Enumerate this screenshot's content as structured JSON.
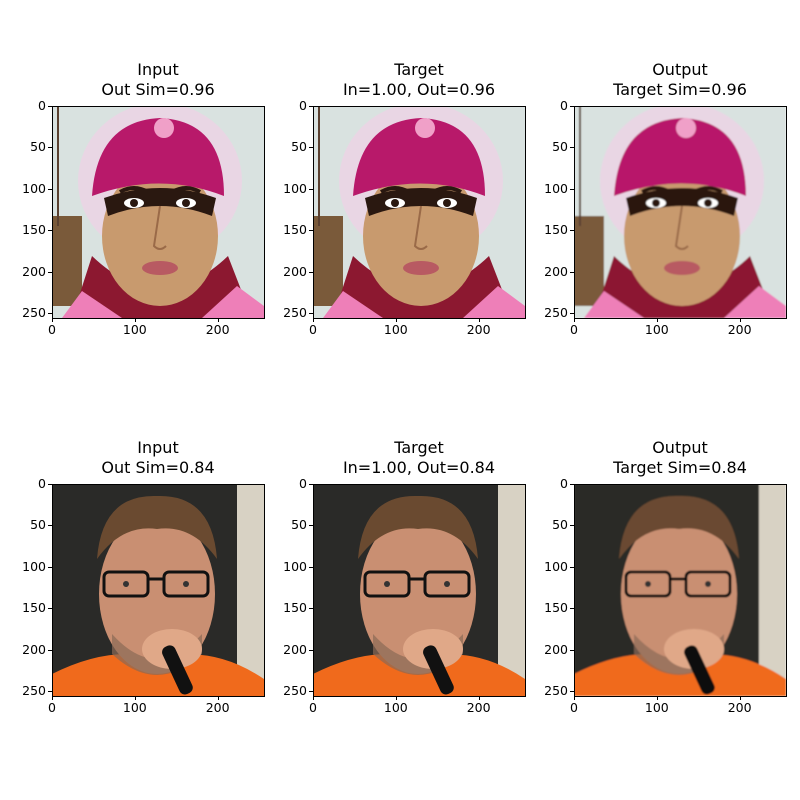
{
  "panels": [
    {
      "title1": "Input",
      "title2": "Out Sim=0.96",
      "image": "portrait of woman in pink knit cap with lace bonnet"
    },
    {
      "title1": "Target",
      "title2": "In=1.00, Out=0.96",
      "image": "portrait of woman in pink knit cap with lace bonnet"
    },
    {
      "title1": "Output",
      "title2": "Target Sim=0.96",
      "image": "reconstructed portrait of woman in pink cap"
    },
    {
      "title1": "Input",
      "title2": "Out Sim=0.84",
      "image": "portrait of man with glasses holding microphone"
    },
    {
      "title1": "Target",
      "title2": "In=1.00, Out=0.84",
      "image": "portrait of man with glasses holding microphone"
    },
    {
      "title1": "Output",
      "title2": "Target Sim=0.84",
      "image": "reconstructed portrait of man with glasses"
    }
  ],
  "axes": {
    "yticks": [
      "0",
      "50",
      "100",
      "150",
      "200",
      "250"
    ],
    "xticks": [
      "0",
      "100",
      "200"
    ]
  },
  "colors": {
    "woman_bg": "#d9e2e0",
    "woman_skin": "#c89a6e",
    "woman_cap": "#b8196a",
    "man_bg": "#2a2a28",
    "man_skin": "#c98f72",
    "man_shirt": "#f06a1c"
  }
}
